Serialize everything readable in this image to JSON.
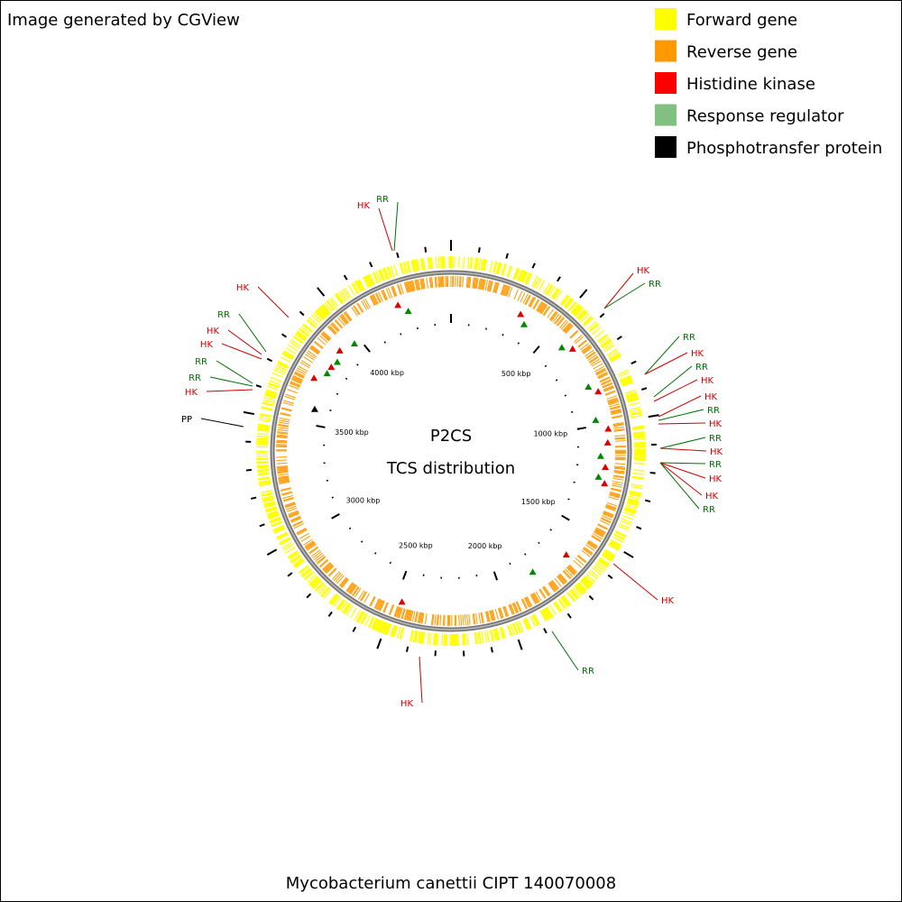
{
  "header": {
    "title": "Image generated by CGView"
  },
  "legend": [
    {
      "label": "Forward gene",
      "color": "#ffff00"
    },
    {
      "label": "Reverse gene",
      "color": "#ff9900"
    },
    {
      "label": "Histidine kinase",
      "color": "#ff0000"
    },
    {
      "label": "Response regulator",
      "color": "#80c080"
    },
    {
      "label": "Phosphotransfer protein",
      "color": "#000000"
    }
  ],
  "center": {
    "title": "P2CS",
    "subtitle": "TCS distribution"
  },
  "ruler_labels": [
    "500 kbp",
    "1000 kbp",
    "1500 kbp",
    "2000 kbp",
    "2500 kbp",
    "3000 kbp",
    "3500 kbp",
    "4000 kbp"
  ],
  "features": [
    {
      "label": "HK",
      "color": "#d00000"
    },
    {
      "label": "RR",
      "color": "#007000"
    },
    {
      "label": "HK",
      "color": "#d00000"
    },
    {
      "label": "RR",
      "color": "#007000"
    },
    {
      "label": "RR",
      "color": "#007000"
    },
    {
      "label": "HK",
      "color": "#d00000"
    },
    {
      "label": "RR",
      "color": "#007000"
    },
    {
      "label": "HK",
      "color": "#d00000"
    },
    {
      "label": "HK",
      "color": "#d00000"
    },
    {
      "label": "RR",
      "color": "#007000"
    },
    {
      "label": "HK",
      "color": "#d00000"
    },
    {
      "label": "RR",
      "color": "#007000"
    },
    {
      "label": "HK",
      "color": "#d00000"
    },
    {
      "label": "RR",
      "color": "#007000"
    },
    {
      "label": "HK",
      "color": "#d00000"
    },
    {
      "label": "HK",
      "color": "#d00000"
    },
    {
      "label": "RR",
      "color": "#007000"
    },
    {
      "label": "HK",
      "color": "#d00000"
    },
    {
      "label": "RR",
      "color": "#007000"
    },
    {
      "label": "HK",
      "color": "#d00000"
    },
    {
      "label": "HK",
      "color": "#d00000"
    },
    {
      "label": "RR",
      "color": "#007000"
    },
    {
      "label": "HK",
      "color": "#d00000"
    },
    {
      "label": "HK",
      "color": "#d00000"
    },
    {
      "label": "RR",
      "color": "#007000"
    },
    {
      "label": "RR",
      "color": "#007000"
    },
    {
      "label": "HK",
      "color": "#d00000"
    },
    {
      "label": "PP",
      "color": "#000000"
    }
  ],
  "footer": {
    "title": "Mycobacterium canettii CIPT 140070008"
  }
}
